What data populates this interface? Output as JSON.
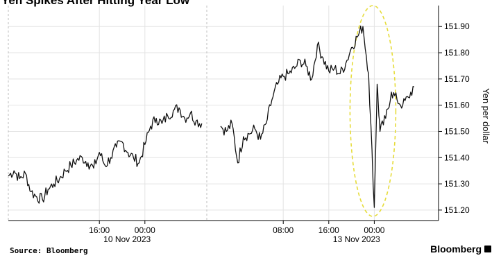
{
  "header": {
    "title": "Yen Spikes After Hitting Year Low"
  },
  "footer": {
    "source": "Source: Bloomberg",
    "brand": "Bloomberg"
  },
  "chart_data": {
    "type": "line",
    "title": "Yen Spikes After Hitting Year Low",
    "ylabel": "Yen per dollar",
    "xlabel": "",
    "ylim": [
      151.16,
      151.98
    ],
    "y_ticks": [
      151.2,
      151.3,
      151.4,
      151.5,
      151.6,
      151.7,
      151.8,
      151.9
    ],
    "y_tick_labels": [
      "151.20",
      "151.30",
      "151.40",
      "151.50",
      "151.60",
      "151.70",
      "151.80",
      "151.90"
    ],
    "y_axis_side": "right",
    "grid": true,
    "x_ticks": [
      {
        "label": "16:00",
        "date_label": "10 Nov 2023"
      },
      {
        "label": "00:00",
        "date_label": ""
      },
      {
        "label": "08:00",
        "date_label": ""
      },
      {
        "label": "16:00",
        "date_label": "13 Nov 2023"
      },
      {
        "label": "00:00",
        "date_label": ""
      }
    ],
    "annotation": {
      "shape": "dashed-ellipse",
      "color": "#e6dc3a"
    },
    "series": [
      {
        "segments": [
          {
            "x": [
              "10 Nov 00:00",
              "10 Nov 01:00",
              "10 Nov 02:00",
              "10 Nov 03:00",
              "10 Nov 04:00",
              "10 Nov 05:00",
              "10 Nov 06:00",
              "10 Nov 07:00",
              "10 Nov 08:00",
              "10 Nov 09:00",
              "10 Nov 10:00",
              "10 Nov 11:00",
              "10 Nov 12:00",
              "10 Nov 13:00",
              "10 Nov 14:00",
              "10 Nov 15:00",
              "10 Nov 16:00",
              "10 Nov 17:00",
              "10 Nov 18:00",
              "10 Nov 19:00",
              "10 Nov 20:00",
              "10 Nov 21:00",
              "10 Nov 22:00",
              "10 Nov 23:00",
              "11 Nov 00:00",
              "11 Nov 01:00",
              "11 Nov 02:00",
              "11 Nov 03:00",
              "11 Nov 04:00",
              "11 Nov 05:00",
              "11 Nov 06:00",
              "11 Nov 07:00",
              "11 Nov 08:00",
              "11 Nov 09:00",
              "11 Nov 10:00"
            ],
            "y": [
              151.33,
              151.35,
              151.32,
              151.34,
              151.27,
              151.25,
              151.24,
              151.28,
              151.3,
              151.32,
              151.35,
              151.37,
              151.39,
              151.4,
              151.38,
              151.36,
              151.42,
              151.37,
              151.4,
              151.44,
              151.46,
              151.42,
              151.4,
              151.38,
              151.45,
              151.52,
              151.55,
              151.53,
              151.56,
              151.58,
              151.59,
              151.55,
              151.57,
              151.54,
              151.53
            ]
          },
          {
            "x": [
              "12 Nov 21:00",
              "12 Nov 22:00",
              "12 Nov 23:00",
              "13 Nov 00:00",
              "13 Nov 01:00",
              "13 Nov 02:00",
              "13 Nov 03:00",
              "13 Nov 04:00",
              "13 Nov 05:00",
              "13 Nov 06:00",
              "13 Nov 07:00",
              "13 Nov 08:00",
              "13 Nov 09:00",
              "13 Nov 10:00",
              "13 Nov 11:00",
              "13 Nov 12:00",
              "13 Nov 13:00",
              "13 Nov 14:00",
              "13 Nov 15:00",
              "13 Nov 16:00",
              "13 Nov 17:00",
              "13 Nov 18:00",
              "13 Nov 19:00",
              "13 Nov 20:00",
              "13 Nov 21:00",
              "13 Nov 22:00",
              "13 Nov 23:00",
              "14 Nov 00:00",
              "14 Nov 00:30",
              "14 Nov 01:00",
              "14 Nov 02:00",
              "14 Nov 03:00",
              "14 Nov 04:00",
              "14 Nov 05:00",
              "14 Nov 06:00",
              "14 Nov 07:00"
            ],
            "y": [
              151.52,
              151.5,
              151.53,
              151.38,
              151.48,
              151.49,
              151.51,
              151.47,
              151.53,
              151.62,
              151.68,
              151.71,
              151.72,
              151.74,
              151.77,
              151.75,
              151.7,
              151.83,
              151.78,
              151.73,
              151.74,
              151.72,
              151.76,
              151.82,
              151.86,
              151.9,
              151.72,
              151.21,
              151.68,
              151.5,
              151.55,
              151.65,
              151.62,
              151.6,
              151.63,
              151.67
            ]
          }
        ]
      }
    ]
  }
}
